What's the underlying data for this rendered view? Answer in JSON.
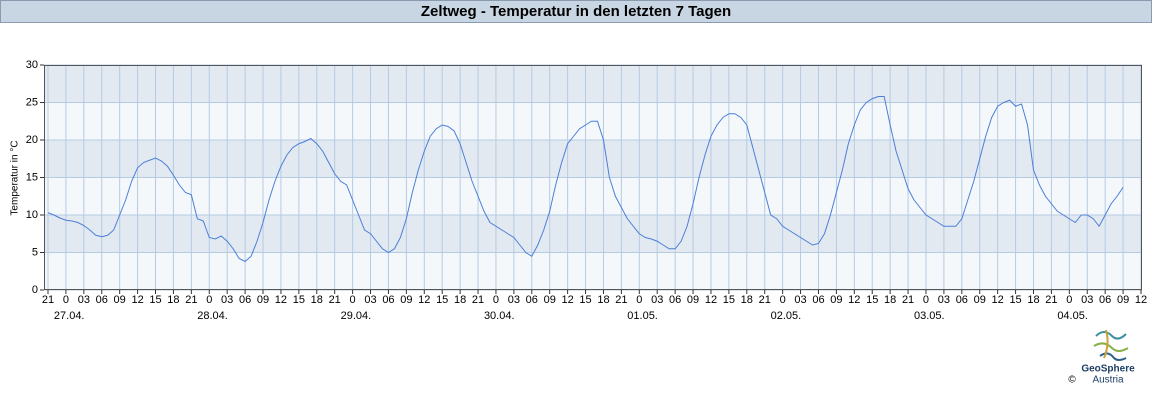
{
  "chart_data": {
    "type": "line",
    "title": "Zeltweg - Temperatur in den letzten 7 Tagen",
    "ylabel": "Temperatur in °C",
    "x": [
      0,
      1,
      2,
      3,
      4,
      5,
      6,
      7,
      8,
      9,
      10,
      11,
      12,
      13,
      14,
      15,
      16,
      17,
      18,
      19,
      20,
      21,
      22,
      23,
      24,
      25,
      26,
      27,
      28,
      29,
      30,
      31,
      32,
      33,
      34,
      35,
      36,
      37,
      38,
      39,
      40,
      41,
      42,
      43,
      44,
      45,
      46,
      47,
      48,
      49,
      50,
      51,
      52,
      53,
      54,
      55,
      56,
      57,
      58,
      59,
      60,
      61,
      62,
      63,
      64,
      65,
      66,
      67,
      68,
      69,
      70,
      71,
      72,
      73,
      74,
      75,
      76,
      77,
      78,
      79,
      80,
      81,
      82,
      83,
      84,
      85,
      86,
      87,
      88,
      89,
      90,
      91,
      92,
      93,
      94,
      95,
      96,
      97,
      98,
      99,
      100,
      101,
      102,
      103,
      104,
      105,
      106,
      107,
      108,
      109,
      110,
      111,
      112,
      113,
      114,
      115,
      116,
      117,
      118,
      119,
      120,
      121,
      122,
      123,
      124,
      125,
      126,
      127,
      128,
      129,
      130,
      131,
      132,
      133,
      134,
      135,
      136,
      137,
      138,
      139,
      140,
      141,
      142,
      143,
      144,
      145,
      146,
      147,
      148,
      149,
      150,
      151,
      152,
      153,
      154,
      155,
      156,
      157,
      158,
      159,
      160,
      161,
      162,
      163,
      164,
      165,
      166,
      167,
      168,
      169,
      170,
      171,
      172,
      173,
      174,
      175,
      176,
      177,
      178,
      179,
      180
    ],
    "series": [
      {
        "name": "Temperatur",
        "color": "#4a7fd8",
        "values": [
          10.3,
          10,
          9.6,
          9.3,
          9.2,
          9,
          8.6,
          8,
          7.3,
          7.1,
          7.3,
          8,
          10,
          12,
          14.5,
          16.3,
          17,
          17.3,
          17.6,
          17.2,
          16.5,
          15.3,
          14,
          13,
          12.7,
          9.5,
          9.2,
          7,
          6.8,
          7.2,
          6.5,
          5.5,
          4.2,
          3.8,
          4.5,
          6.5,
          9,
          12,
          14.5,
          16.5,
          18,
          19,
          19.5,
          19.8,
          20.2,
          19.5,
          18.5,
          17,
          15.5,
          14.5,
          14,
          12,
          10,
          8,
          7.5,
          6.5,
          5.5,
          5,
          5.5,
          7,
          9.5,
          13,
          16,
          18.5,
          20.5,
          21.5,
          22,
          21.8,
          21.2,
          19.5,
          17,
          14.5,
          12.5,
          10.5,
          9,
          8.5,
          8,
          7.5,
          7,
          6,
          5,
          4.5,
          6,
          8,
          10.5,
          14,
          17,
          19.5,
          20.5,
          21.5,
          22,
          22.5,
          22.5,
          20,
          15,
          12.5,
          11,
          9.5,
          8.5,
          7.5,
          7,
          6.8,
          6.5,
          6,
          5.5,
          5.5,
          6.5,
          8.5,
          11.5,
          15,
          18,
          20.5,
          22,
          23,
          23.5,
          23.5,
          23,
          22,
          19,
          16,
          13,
          10,
          9.5,
          8.5,
          8,
          7.5,
          7,
          6.5,
          6,
          6.2,
          7.5,
          10,
          13,
          16,
          19.5,
          22,
          24,
          25,
          25.5,
          25.8,
          25.8,
          22,
          18.5,
          16,
          13.5,
          12,
          11,
          10,
          9.5,
          9,
          8.5,
          8.5,
          8.5,
          9.5,
          12,
          14.5,
          17.5,
          20.5,
          23,
          24.5,
          25,
          25.3,
          24.5,
          24.8,
          22,
          16,
          14,
          12.5,
          11.5,
          10.5,
          10,
          9.5,
          9,
          10,
          10,
          9.5,
          8.5,
          10,
          11.5,
          12.5,
          13.7
        ]
      }
    ],
    "ylim": [
      0,
      30
    ],
    "yticks": [
      0,
      5,
      10,
      15,
      20,
      25,
      30
    ],
    "xlim": [
      0,
      183
    ],
    "xticks": [
      {
        "value": 0,
        "label": "21"
      },
      {
        "value": 3,
        "label": "0"
      },
      {
        "value": 6,
        "label": "03"
      },
      {
        "value": 9,
        "label": "06"
      },
      {
        "value": 12,
        "label": "09"
      },
      {
        "value": 15,
        "label": "12"
      },
      {
        "value": 18,
        "label": "15"
      },
      {
        "value": 21,
        "label": "18"
      },
      {
        "value": 24,
        "label": "21"
      },
      {
        "value": 27,
        "label": "0"
      },
      {
        "value": 30,
        "label": "03"
      },
      {
        "value": 33,
        "label": "06"
      },
      {
        "value": 36,
        "label": "09"
      },
      {
        "value": 39,
        "label": "12"
      },
      {
        "value": 42,
        "label": "15"
      },
      {
        "value": 45,
        "label": "18"
      },
      {
        "value": 48,
        "label": "21"
      },
      {
        "value": 51,
        "label": "0"
      },
      {
        "value": 54,
        "label": "03"
      },
      {
        "value": 57,
        "label": "06"
      },
      {
        "value": 60,
        "label": "09"
      },
      {
        "value": 63,
        "label": "12"
      },
      {
        "value": 66,
        "label": "15"
      },
      {
        "value": 69,
        "label": "18"
      },
      {
        "value": 72,
        "label": "21"
      },
      {
        "value": 75,
        "label": "0"
      },
      {
        "value": 78,
        "label": "03"
      },
      {
        "value": 81,
        "label": "06"
      },
      {
        "value": 84,
        "label": "09"
      },
      {
        "value": 87,
        "label": "12"
      },
      {
        "value": 90,
        "label": "15"
      },
      {
        "value": 93,
        "label": "18"
      },
      {
        "value": 96,
        "label": "21"
      },
      {
        "value": 99,
        "label": "0"
      },
      {
        "value": 102,
        "label": "03"
      },
      {
        "value": 105,
        "label": "06"
      },
      {
        "value": 108,
        "label": "09"
      },
      {
        "value": 111,
        "label": "12"
      },
      {
        "value": 114,
        "label": "15"
      },
      {
        "value": 117,
        "label": "18"
      },
      {
        "value": 120,
        "label": "21"
      },
      {
        "value": 123,
        "label": "0"
      },
      {
        "value": 126,
        "label": "03"
      },
      {
        "value": 129,
        "label": "06"
      },
      {
        "value": 132,
        "label": "09"
      },
      {
        "value": 135,
        "label": "12"
      },
      {
        "value": 138,
        "label": "15"
      },
      {
        "value": 141,
        "label": "18"
      },
      {
        "value": 144,
        "label": "21"
      },
      {
        "value": 147,
        "label": "0"
      },
      {
        "value": 150,
        "label": "03"
      },
      {
        "value": 153,
        "label": "06"
      },
      {
        "value": 156,
        "label": "09"
      },
      {
        "value": 159,
        "label": "12"
      },
      {
        "value": 162,
        "label": "15"
      },
      {
        "value": 165,
        "label": "18"
      },
      {
        "value": 168,
        "label": "21"
      },
      {
        "value": 171,
        "label": "0"
      },
      {
        "value": 174,
        "label": "03"
      },
      {
        "value": 177,
        "label": "06"
      },
      {
        "value": 180,
        "label": "09"
      },
      {
        "value": 183,
        "label": "12"
      }
    ],
    "day_labels": [
      {
        "value": 3,
        "label": "27.04."
      },
      {
        "value": 27,
        "label": "28.04."
      },
      {
        "value": 51,
        "label": "29.04."
      },
      {
        "value": 75,
        "label": "30.04."
      },
      {
        "value": 99,
        "label": "01.05."
      },
      {
        "value": 123,
        "label": "02.05."
      },
      {
        "value": 147,
        "label": "03.05."
      },
      {
        "value": 171,
        "label": "04.05."
      }
    ],
    "grid": true,
    "logo": {
      "name": "GeoSphere",
      "sub": "Austria",
      "copyright": "©"
    }
  }
}
